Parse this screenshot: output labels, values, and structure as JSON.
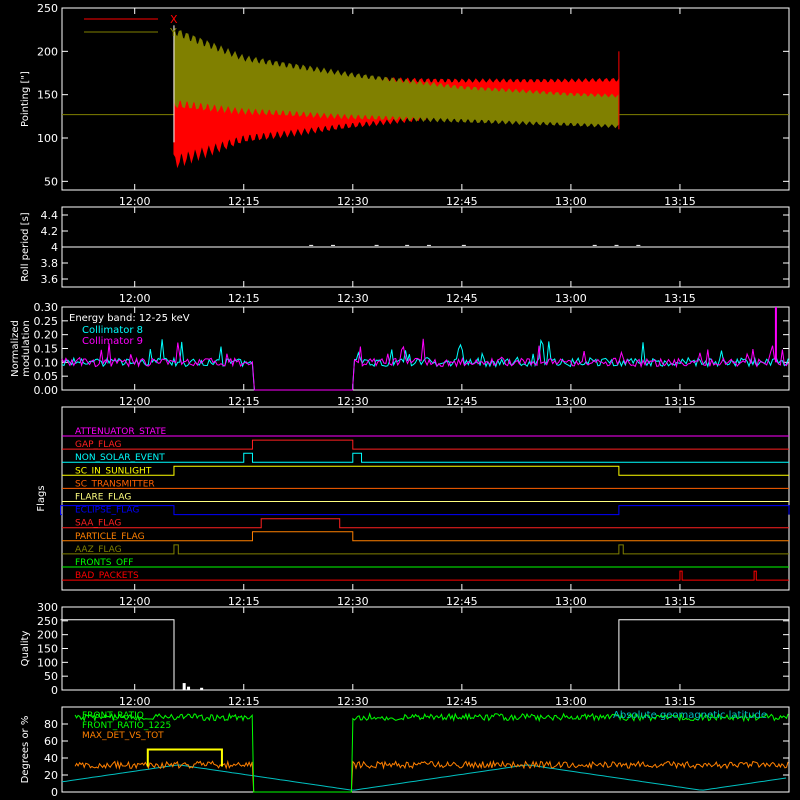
{
  "chart_data": [
    {
      "type": "line",
      "panel": "pointing",
      "ylabel": "Pointing [\"]",
      "ylim": [
        40,
        250
      ],
      "yticks": [
        50,
        100,
        150,
        200,
        250
      ],
      "xlim": [
        "11:50",
        "13:30"
      ],
      "xticks": [
        "12:00",
        "12:15",
        "12:30",
        "12:45",
        "13:00",
        "13:15"
      ],
      "legend": "top-left",
      "baseline": 127,
      "series": [
        {
          "name": "X",
          "color": "#ff0000",
          "upper": [
            [
              12.09,
              210
            ],
            [
              12.25,
              178
            ],
            [
              12.5,
              170
            ],
            [
              12.75,
              168
            ],
            [
              13.0,
              168
            ],
            [
              13.11,
              169
            ]
          ],
          "lower": [
            [
              12.09,
              65
            ],
            [
              12.25,
              95
            ],
            [
              12.5,
              112
            ],
            [
              12.75,
              125
            ],
            [
              13.0,
              128
            ],
            [
              13.11,
              128
            ]
          ]
        },
        {
          "name": "Y",
          "color": "#808000",
          "upper": [
            [
              12.09,
              228
            ],
            [
              12.25,
              195
            ],
            [
              12.5,
              175
            ],
            [
              12.75,
              160
            ],
            [
              13.0,
              152
            ],
            [
              13.11,
              150
            ]
          ],
          "lower": [
            [
              12.09,
              135
            ],
            [
              12.25,
              128
            ],
            [
              12.5,
              122
            ],
            [
              12.75,
              118
            ],
            [
              13.0,
              114
            ],
            [
              13.11,
              112
            ]
          ]
        }
      ]
    },
    {
      "type": "line",
      "panel": "roll_period",
      "ylabel": "Roll period [s]",
      "ylim": [
        3.5,
        4.5
      ],
      "yticks": [
        3.6,
        3.8,
        4.0,
        4.2,
        4.4
      ],
      "xlim": [
        "11:50",
        "13:30"
      ],
      "xticks": [
        "12:00",
        "12:15",
        "12:30",
        "12:45",
        "13:00",
        "13:15"
      ],
      "series": [
        {
          "name": "",
          "color": "#ffffff",
          "value": 4.0
        }
      ]
    },
    {
      "type": "line",
      "panel": "modulation",
      "ylabel": "Normalized modulation",
      "ylim": [
        0.0,
        0.3
      ],
      "yticks": [
        "0.00",
        "0.05",
        "0.10",
        "0.15",
        "0.20",
        "0.25",
        "0.30"
      ],
      "xlim": [
        "11:50",
        "13:30"
      ],
      "xticks": [
        "12:00",
        "12:15",
        "12:30",
        "12:45",
        "13:00",
        "13:15"
      ],
      "annotations": [
        "Energy band: 12-25 keV"
      ],
      "gap": [
        12.27,
        12.5
      ],
      "series": [
        {
          "name": "Collimator 8",
          "color": "#00ffff",
          "mean": 0.1
        },
        {
          "name": "Collimator 9",
          "color": "#ff00ff",
          "mean": 0.1
        }
      ]
    },
    {
      "type": "line",
      "panel": "flags",
      "ylabel": "Flags",
      "xlim": [
        "11:50",
        "13:30"
      ],
      "xticks": [
        "12:00",
        "12:15",
        "12:30",
        "12:45",
        "13:00",
        "13:15"
      ],
      "series": [
        {
          "name": "ATTENUATOR_STATE",
          "color": "#ff00ff",
          "high": []
        },
        {
          "name": "GAP_FLAG",
          "color": "#ff2020",
          "high": [
            [
              12.27,
              12.5
            ]
          ]
        },
        {
          "name": "NON_SOLAR_EVENT",
          "color": "#00ffff",
          "high": [
            [
              12.25,
              12.27
            ],
            [
              12.5,
              12.52
            ]
          ]
        },
        {
          "name": "SC_IN_SUNLIGHT",
          "color": "#ffff00",
          "high": [
            [
              12.09,
              13.11
            ]
          ]
        },
        {
          "name": "SC_TRANSMITTER",
          "color": "#ff6000",
          "high": []
        },
        {
          "name": "FLARE_FLAG",
          "color": "#ffff80",
          "high": []
        },
        {
          "name": "ECLIPSE_FLAG",
          "color": "#0000ff",
          "high": [
            [
              11.83,
              12.09
            ],
            [
              13.11,
              13.5
            ]
          ]
        },
        {
          "name": "SAA_FLAG",
          "color": "#ff2020",
          "high": [
            [
              12.29,
              12.47
            ]
          ]
        },
        {
          "name": "PARTICLE_FLAG",
          "color": "#ff8000",
          "high": [
            [
              12.27,
              12.5
            ]
          ]
        },
        {
          "name": "AAZ_FLAG",
          "color": "#808000",
          "high": [
            [
              12.09,
              12.1
            ],
            [
              13.11,
              13.12
            ]
          ]
        },
        {
          "name": "FRONTS_OFF",
          "color": "#00ff00",
          "high": []
        },
        {
          "name": "BAD_PACKETS",
          "color": "#ff0000",
          "high": [
            [
              13.25,
              13.255
            ],
            [
              13.42,
              13.425
            ]
          ]
        }
      ]
    },
    {
      "type": "line",
      "panel": "quality",
      "ylabel": "Quality",
      "ylim": [
        0,
        300
      ],
      "yticks": [
        0,
        50,
        100,
        150,
        200,
        250,
        300
      ],
      "xlim": [
        "11:50",
        "13:30"
      ],
      "xticks": [
        "12:00",
        "12:15",
        "12:30",
        "12:45",
        "13:00",
        "13:15"
      ],
      "series": [
        {
          "name": "",
          "color": "#ffffff",
          "points": [
            [
              11.83,
              254
            ],
            [
              12.09,
              254
            ],
            [
              12.09,
              0
            ],
            [
              13.11,
              0
            ],
            [
              13.11,
              254
            ],
            [
              13.5,
              254
            ]
          ]
        }
      ]
    },
    {
      "type": "line",
      "panel": "front_ratio",
      "ylabel": "Degrees or %",
      "ylim": [
        0,
        100
      ],
      "yticks": [
        0,
        20,
        40,
        60,
        80
      ],
      "xlim": [
        "11:50",
        "13:30"
      ],
      "annotations": [
        "Absolute geomagnetic latitude"
      ],
      "series": [
        {
          "name": "FRONT_RATIO",
          "color": "#00ff00",
          "mean": 88
        },
        {
          "name": "FRONT_RATIO_1225",
          "color": "#00ff00",
          "mean": 88
        },
        {
          "name": "MAX_DET_VS_TOT",
          "color": "#ff8000",
          "mean": 32
        },
        {
          "name": "Absolute geomagnetic latitude",
          "color": "#00c0c0"
        },
        {
          "name": "",
          "color": "#ffff00",
          "mean": 30
        }
      ]
    }
  ]
}
